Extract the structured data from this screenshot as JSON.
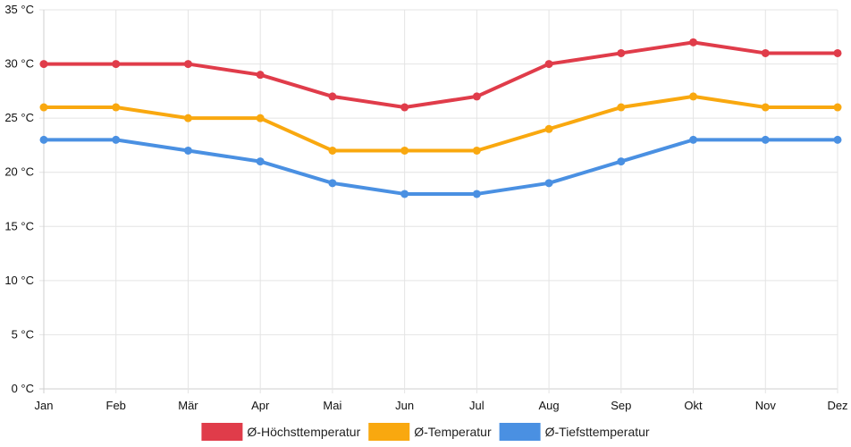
{
  "chart_data": {
    "type": "line",
    "title": "",
    "xlabel": "",
    "ylabel": "",
    "unit": "°C",
    "ylim": [
      0,
      35
    ],
    "y_ticks": [
      0,
      5,
      10,
      15,
      20,
      25,
      30,
      35
    ],
    "y_tick_labels": [
      "0 °C",
      "5 °C",
      "10 °C",
      "15 °C",
      "20 °C",
      "25 °C",
      "30 °C",
      "35 °C"
    ],
    "grid": true,
    "legend_position": "bottom",
    "categories": [
      "Jan",
      "Feb",
      "Mär",
      "Apr",
      "Mai",
      "Jun",
      "Jul",
      "Aug",
      "Sep",
      "Okt",
      "Nov",
      "Dez"
    ],
    "series": [
      {
        "name": "Ø-Höchsttemperatur",
        "color": "#e03c4a",
        "values": [
          30,
          30,
          30,
          29,
          27,
          26,
          27,
          30,
          31,
          32,
          31,
          31
        ]
      },
      {
        "name": "Ø-Temperatur",
        "color": "#f9a80f",
        "values": [
          26,
          26,
          25,
          25,
          22,
          22,
          22,
          24,
          26,
          27,
          26,
          26
        ]
      },
      {
        "name": "Ø-Tiefsttemperatur",
        "color": "#4a90e2",
        "values": [
          23,
          23,
          22,
          21,
          19,
          18,
          18,
          19,
          21,
          23,
          23,
          23
        ]
      }
    ]
  }
}
